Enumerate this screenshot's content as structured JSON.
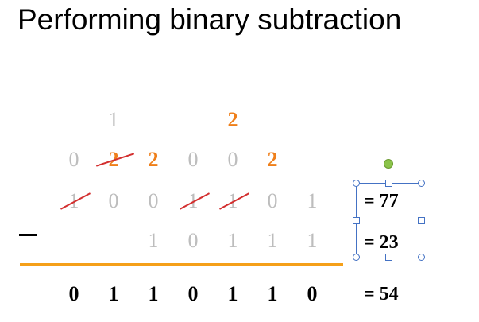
{
  "title": "Performing binary subtraction",
  "borrow_row2": [
    "1",
    "2"
  ],
  "borrow_row1": [
    "0",
    "2",
    "2",
    "0",
    "0",
    "2"
  ],
  "minuend": [
    "1",
    "0",
    "0",
    "1",
    "1",
    "0",
    "1"
  ],
  "operator": "-",
  "subtrahend": [
    "1",
    "0",
    "1",
    "1",
    "1"
  ],
  "result": [
    "0",
    "1",
    "1",
    "0",
    "1",
    "1",
    "0"
  ],
  "equations": {
    "minuend": "= 77",
    "subtrahend": "= 23",
    "result": "= 54"
  },
  "colors": {
    "borrow": "#ef7f1a",
    "digit": "#bdbdbd",
    "strike": "#d32f2f",
    "rule": "#f5a019",
    "selection": "#4472c4"
  }
}
